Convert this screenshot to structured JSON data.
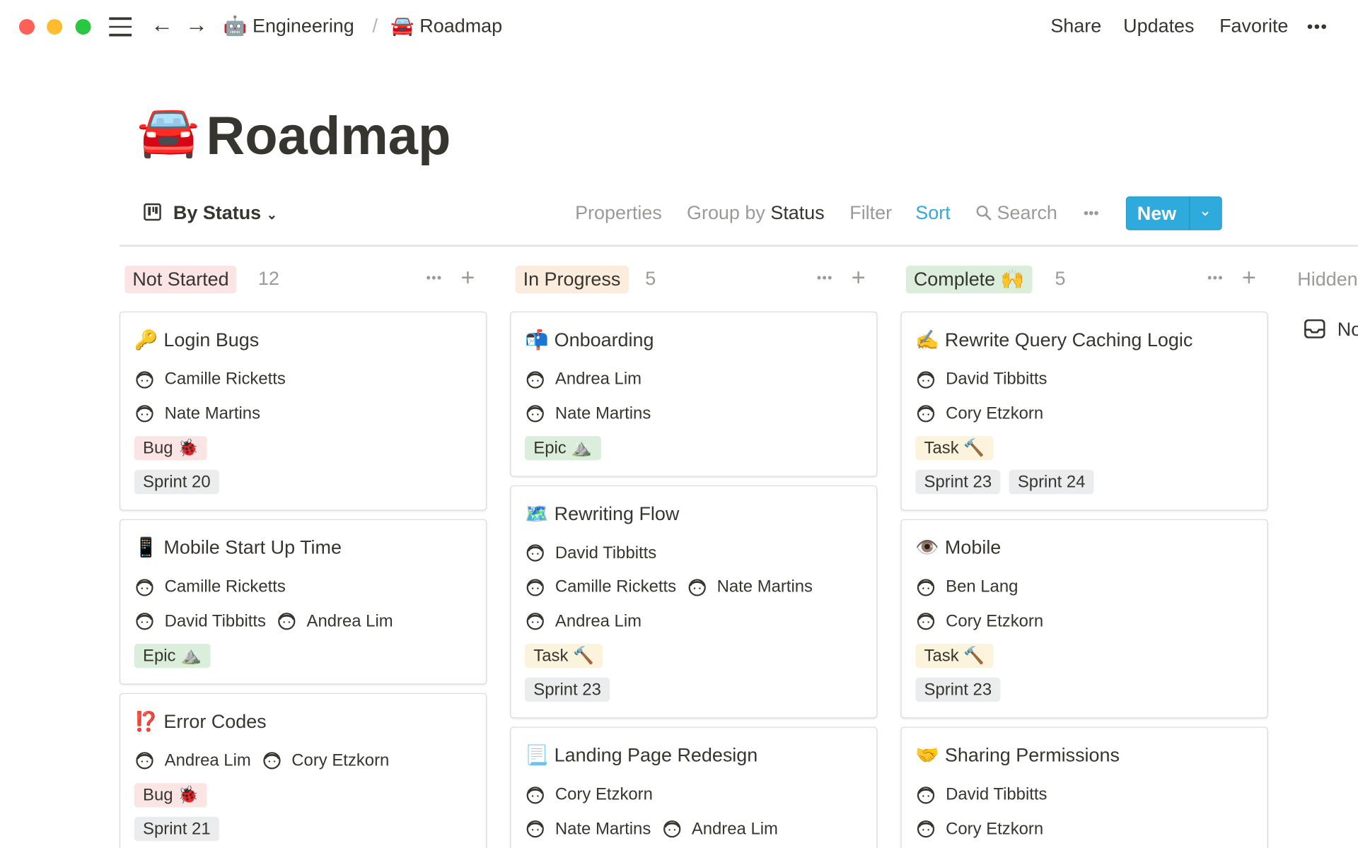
{
  "window": {
    "lights": [
      "#fe5f57",
      "#febc2e",
      "#28c840"
    ]
  },
  "topbar": {
    "breadcrumb": [
      {
        "icon": "🤖",
        "label": "Engineering"
      },
      {
        "icon": "🚘",
        "label": "Roadmap"
      }
    ],
    "separator": "/",
    "share": "Share",
    "updates": "Updates",
    "favorite": "Favorite",
    "more": "•••"
  },
  "page": {
    "icon": "🚘",
    "title": "Roadmap"
  },
  "toolbar": {
    "view": "By Status",
    "properties": "Properties",
    "group_by": "Group by",
    "group_value": "Status",
    "filter": "Filter",
    "sort": "Sort",
    "search": "Search",
    "more": "•••",
    "new": "New",
    "accent": "#2eaadc"
  },
  "tag_colors": {
    "red": "#fbe4e4",
    "green": "#dbeddb",
    "yellow": "#fbf3db",
    "gray": "#ebeced"
  },
  "columns": [
    {
      "label": "Not Started",
      "color": "#fbe4e4",
      "count": "12",
      "cards": [
        {
          "icon": "🔑",
          "title": "Login Bugs",
          "rows": [
            [
              "Camille Ricketts"
            ],
            [
              "Nate Martins"
            ]
          ],
          "tags": [
            [
              {
                "t": "Bug 🐞",
                "c": "red"
              }
            ],
            [
              {
                "t": "Sprint 20",
                "c": "gray"
              }
            ]
          ]
        },
        {
          "icon": "📱",
          "title": "Mobile Start Up Time",
          "rows": [
            [
              "Camille Ricketts"
            ],
            [
              "David Tibbitts",
              "Andrea Lim"
            ]
          ],
          "tags": [
            [
              {
                "t": "Epic ⛰️",
                "c": "green"
              }
            ]
          ]
        },
        {
          "icon": "⁉️",
          "title": "Error Codes",
          "rows": [
            [
              "Andrea Lim",
              "Cory Etzkorn"
            ]
          ],
          "tags": [
            [
              {
                "t": "Bug 🐞",
                "c": "red"
              }
            ],
            [
              {
                "t": "Sprint 21",
                "c": "gray"
              }
            ]
          ]
        }
      ]
    },
    {
      "label": "In Progress",
      "color": "#fbecdd",
      "count": "5",
      "cards": [
        {
          "icon": "📬",
          "title": "Onboarding",
          "rows": [
            [
              "Andrea Lim"
            ],
            [
              "Nate Martins"
            ]
          ],
          "tags": [
            [
              {
                "t": "Epic ⛰️",
                "c": "green"
              }
            ]
          ]
        },
        {
          "icon": "🗺️",
          "title": "Rewriting Flow",
          "rows": [
            [
              "David Tibbitts"
            ],
            [
              "Camille Ricketts",
              "Nate Martins"
            ],
            [
              "Andrea Lim"
            ]
          ],
          "tags": [
            [
              {
                "t": "Task 🔨",
                "c": "yellow"
              }
            ],
            [
              {
                "t": "Sprint 23",
                "c": "gray"
              }
            ]
          ]
        },
        {
          "icon": "📃",
          "title": "Landing Page Redesign",
          "rows": [
            [
              "Cory Etzkorn"
            ],
            [
              "Nate Martins",
              "Andrea Lim"
            ]
          ],
          "tags": []
        }
      ]
    },
    {
      "label": "Complete 🙌",
      "color": "#dbeddb",
      "count": "5",
      "cards": [
        {
          "icon": "✍️",
          "title": "Rewrite Query Caching Logic",
          "rows": [
            [
              "David Tibbitts"
            ],
            [
              "Cory Etzkorn"
            ]
          ],
          "tags": [
            [
              {
                "t": "Task 🔨",
                "c": "yellow"
              }
            ],
            [
              {
                "t": "Sprint 23",
                "c": "gray"
              },
              {
                "t": "Sprint 24",
                "c": "gray"
              }
            ]
          ]
        },
        {
          "icon": "👁️",
          "title": "Mobile",
          "rows": [
            [
              "Ben Lang"
            ],
            [
              "Cory Etzkorn"
            ]
          ],
          "tags": [
            [
              {
                "t": "Task 🔨",
                "c": "yellow"
              }
            ],
            [
              {
                "t": "Sprint 23",
                "c": "gray"
              }
            ]
          ]
        },
        {
          "icon": "🤝",
          "title": "Sharing Permissions",
          "rows": [
            [
              "David Tibbitts"
            ],
            [
              "Cory Etzkorn"
            ]
          ],
          "tags": []
        }
      ]
    }
  ],
  "hidden": {
    "label": "Hidden",
    "item": "No Status"
  }
}
